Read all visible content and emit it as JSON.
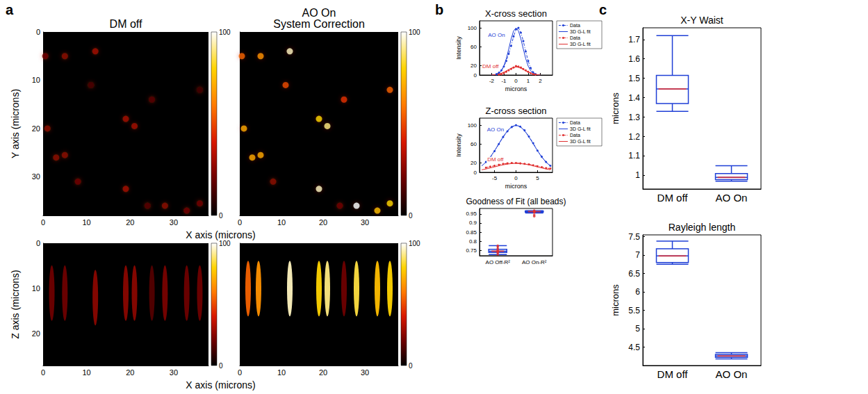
{
  "chart_data": [
    {
      "panel": "a",
      "type": "bead_image",
      "title": "DM off",
      "xlabel": "X axis (microns)",
      "ylabel": "Y axis (microns)",
      "marker": "circle",
      "xlim": [
        0,
        38
      ],
      "ylim": [
        0,
        38
      ],
      "xticks": [
        0,
        10,
        20,
        30
      ],
      "yticks": [
        0,
        10,
        20,
        30
      ],
      "colorbar_range": [
        0,
        100
      ],
      "colorbar_ticks": [
        0,
        100
      ],
      "beads": [
        [
          0.5,
          5,
          20
        ],
        [
          5,
          5,
          25
        ],
        [
          12,
          4,
          30
        ],
        [
          11,
          11,
          12
        ],
        [
          1,
          20,
          25
        ],
        [
          3,
          26,
          25
        ],
        [
          5,
          25.5,
          25
        ],
        [
          8,
          31,
          20
        ],
        [
          19,
          18,
          30
        ],
        [
          21,
          19.5,
          30
        ],
        [
          25,
          14,
          15
        ],
        [
          19,
          32.5,
          30
        ],
        [
          24,
          36,
          15
        ],
        [
          28,
          36,
          25
        ],
        [
          33,
          37,
          20
        ],
        [
          36,
          35.5,
          20
        ],
        [
          36,
          12,
          10
        ]
      ]
    },
    {
      "type": "bead_image",
      "title": "AO On\nSystem Correction",
      "tick_labels": "x",
      "marker": "circle",
      "xlim": [
        0,
        38
      ],
      "ylim": [
        0,
        38
      ],
      "xticks": [
        0,
        10,
        20,
        30
      ],
      "yticks": [
        0,
        10,
        20,
        30
      ],
      "colorbar_range": [
        0,
        100
      ],
      "colorbar_ticks": [
        0,
        100
      ],
      "beads": [
        [
          0.5,
          5,
          55
        ],
        [
          5,
          5,
          65
        ],
        [
          12,
          4,
          95
        ],
        [
          11,
          11,
          50
        ],
        [
          1,
          20,
          70
        ],
        [
          3,
          26,
          70
        ],
        [
          5,
          25.5,
          70
        ],
        [
          8,
          31,
          25
        ],
        [
          19,
          18,
          80
        ],
        [
          21,
          19.5,
          90
        ],
        [
          25,
          14,
          45
        ],
        [
          19,
          32.5,
          95
        ],
        [
          24,
          36,
          20
        ],
        [
          28,
          36,
          100
        ],
        [
          33,
          37,
          75
        ],
        [
          36,
          35.5,
          80
        ],
        [
          36,
          12,
          55
        ]
      ]
    },
    {
      "type": "bead_image",
      "xlabel": "X axis (microns)",
      "ylabel": "Z axis (microns)",
      "marker": "ellipse",
      "xlim": [
        0,
        38
      ],
      "ylim": [
        0,
        27
      ],
      "xticks": [
        0,
        10,
        20,
        30
      ],
      "yticks": [
        0,
        10,
        20
      ],
      "colorbar_range": [
        0,
        100
      ],
      "colorbar_ticks": [
        0,
        100
      ],
      "beads": [
        [
          2,
          11,
          20
        ],
        [
          5,
          11,
          20
        ],
        [
          12,
          12,
          25
        ],
        [
          19,
          11,
          25
        ],
        [
          21,
          11,
          25
        ],
        [
          25,
          11,
          15
        ],
        [
          28,
          11,
          22
        ],
        [
          33,
          11,
          20
        ],
        [
          36,
          11,
          20
        ]
      ]
    },
    {
      "type": "bead_image",
      "tick_labels": "x",
      "marker": "ellipse",
      "xlim": [
        0,
        38
      ],
      "ylim": [
        0,
        27
      ],
      "xticks": [
        0,
        10,
        20,
        30
      ],
      "yticks": [
        0,
        10,
        20
      ],
      "colorbar_range": [
        0,
        100
      ],
      "colorbar_ticks": [
        0,
        100
      ],
      "beads": [
        [
          2,
          10,
          55
        ],
        [
          4.5,
          10,
          65
        ],
        [
          12,
          10,
          95
        ],
        [
          19,
          10,
          80
        ],
        [
          21,
          10,
          90
        ],
        [
          25,
          10,
          20
        ],
        [
          28,
          10,
          85
        ],
        [
          33,
          10,
          75
        ],
        [
          36,
          10,
          80
        ]
      ]
    },
    {
      "panel": "b",
      "type": "line",
      "title": "X-cross section",
      "xlabel": "microns",
      "ylabel": "Intensity",
      "legend": "right",
      "xlim": [
        -3,
        3
      ],
      "xticks": [
        -2,
        -1,
        0,
        1,
        2
      ],
      "ylim": [
        0,
        115
      ],
      "yticks": [
        0,
        20,
        60,
        100
      ],
      "series": [
        {
          "name": "Data",
          "color": "#1f3fd6",
          "marker": "circle",
          "line_style": "dashdot",
          "x": [
            -1.6,
            -1.4,
            -1.2,
            -1.0,
            -0.8,
            -0.6,
            -0.4,
            -0.2,
            0,
            0.2,
            0.4,
            0.6,
            0.8,
            1.0,
            1.2,
            1.4,
            1.6
          ],
          "values": [
            2,
            5,
            10,
            18,
            30,
            45,
            62,
            82,
            97,
            100,
            90,
            72,
            50,
            30,
            15,
            6,
            2
          ]
        },
        {
          "name": "3D G-L fit",
          "color": "#1f3fd6",
          "marker": "none",
          "line_style": "solid",
          "x": [
            -2.0,
            -1.8,
            -1.6,
            -1.4,
            -1.2,
            -1.0,
            -0.8,
            -0.6,
            -0.4,
            -0.2,
            0,
            0.2,
            0.4,
            0.6,
            0.8,
            1.0,
            1.2,
            1.4,
            1.6,
            1.8,
            2.0
          ],
          "values": [
            0.1,
            0.5,
            1.5,
            3.9,
            9.3,
            19.1,
            34.7,
            55.2,
            76.8,
            93.6,
            100,
            93.6,
            76.8,
            55.2,
            34.7,
            19.1,
            9.3,
            3.9,
            1.5,
            0.5,
            0.1
          ]
        },
        {
          "name": "Data",
          "color": "#e03030",
          "marker": "circle",
          "line_style": "dashdot",
          "x": [
            -1.4,
            -1.2,
            -1.0,
            -0.8,
            -0.6,
            -0.4,
            -0.2,
            0,
            0.2,
            0.4,
            0.6,
            0.8,
            1.0,
            1.2,
            1.4,
            1.6
          ],
          "values": [
            1,
            2,
            4,
            7,
            10,
            13,
            16,
            19,
            18,
            16,
            13,
            10,
            7,
            4,
            2,
            1
          ]
        },
        {
          "name": "3D G-L fit",
          "color": "#e03030",
          "marker": "none",
          "line_style": "solid",
          "x": [
            -2.0,
            -1.8,
            -1.6,
            -1.4,
            -1.2,
            -1.0,
            -0.8,
            -0.6,
            -0.4,
            -0.2,
            0,
            0.2,
            0.4,
            0.6,
            0.8,
            1.0,
            1.2,
            1.4,
            1.6,
            1.8,
            2.0
          ],
          "values": [
            0.3,
            0.6,
            1.3,
            2.3,
            3.9,
            6.1,
            8.8,
            11.7,
            14.4,
            16.3,
            17,
            16.3,
            14.4,
            11.7,
            8.8,
            6.1,
            3.9,
            2.3,
            1.3,
            0.6,
            0.3
          ]
        }
      ],
      "annotations": [
        {
          "text": "AO On",
          "x": -1.6,
          "y": 85,
          "color": "#1f3fd6"
        },
        {
          "text": "DM off",
          "x": -2.1,
          "y": 18,
          "color": "#e03030"
        }
      ]
    },
    {
      "type": "line",
      "title": "Z-cross section",
      "xlabel": "microns",
      "ylabel": "Intensity",
      "legend": "right",
      "xlim": [
        -8.5,
        8.5
      ],
      "xticks": [
        -5,
        0,
        5
      ],
      "ylim": [
        0,
        115
      ],
      "yticks": [
        0,
        20,
        60,
        100
      ],
      "series": [
        {
          "name": "Data",
          "color": "#1f3fd6",
          "marker": "circle",
          "line_style": "dashdot",
          "x": [
            -7,
            -6,
            -5,
            -4,
            -3,
            -2,
            -1,
            0,
            1,
            2,
            3,
            4,
            5,
            6,
            7,
            8
          ],
          "values": [
            22,
            31,
            45,
            60,
            75,
            87,
            96,
            100,
            97,
            89,
            76,
            62,
            46,
            33,
            22,
            14
          ]
        },
        {
          "name": "3D G-L fit",
          "color": "#1f3fd6",
          "marker": "none",
          "line_style": "solid",
          "x": [
            -8,
            -7,
            -6,
            -5,
            -4,
            -3,
            -2,
            -1,
            0,
            1,
            2,
            3,
            4,
            5,
            6,
            7,
            8
          ],
          "values": [
            13.5,
            21.6,
            32.5,
            45.8,
            60.7,
            75.5,
            88.2,
            96.9,
            100,
            96.9,
            88.2,
            75.5,
            60.7,
            45.8,
            32.5,
            21.6,
            13.5
          ]
        },
        {
          "name": "Data",
          "color": "#e03030",
          "marker": "circle",
          "line_style": "dashdot",
          "x": [
            -7,
            -6,
            -5,
            -4,
            -3,
            -2,
            -1,
            0,
            1,
            2,
            3,
            4,
            5,
            6,
            7,
            8
          ],
          "values": [
            10,
            12,
            14,
            16,
            18,
            19,
            20,
            20,
            19,
            18,
            17,
            15,
            13,
            11,
            9,
            8
          ]
        },
        {
          "name": "3D G-L fit",
          "color": "#e03030",
          "marker": "none",
          "line_style": "solid",
          "x": [
            -8,
            -7,
            -6,
            -5,
            -4,
            -3,
            -2,
            -1,
            0,
            1,
            2,
            3,
            4,
            5,
            6,
            7,
            8
          ],
          "values": [
            5.3,
            7.1,
            9.3,
            11.5,
            13.8,
            15.9,
            17.5,
            18.6,
            19,
            18.6,
            17.5,
            15.9,
            13.8,
            11.5,
            9.3,
            7.1,
            5.3
          ]
        }
      ],
      "annotations": [
        {
          "text": "AO On",
          "x": -4.8,
          "y": 90,
          "color": "#1f3fd6"
        },
        {
          "text": "DM off",
          "x": -4.8,
          "y": 27,
          "color": "#e03030"
        }
      ]
    },
    {
      "type": "boxplot",
      "title": "Goodness of Fit (all beads)",
      "color": "#1f3fd6",
      "categories": [
        "AO Off-R²",
        "AO On-R²"
      ],
      "ylim": [
        0.72,
        0.98
      ],
      "yticks": [
        0.75,
        0.8,
        0.85,
        0.9,
        0.95
      ],
      "boxes": [
        [
          0.727,
          0.738,
          0.745,
          0.755,
          0.775
        ],
        [
          0.955,
          0.96,
          0.963,
          0.966,
          0.968
        ]
      ],
      "points": [
        [
          0.727,
          0.735,
          0.74,
          0.742,
          0.745,
          0.748,
          0.752,
          0.76,
          0.77,
          0.775
        ],
        [
          0.937,
          0.945,
          0.958,
          0.96,
          0.962,
          0.963,
          0.964,
          0.965,
          0.966,
          0.968
        ]
      ]
    },
    {
      "panel": "c",
      "type": "boxplot",
      "title": "X-Y Waist",
      "ylabel": "microns",
      "color": "#1f3fd6",
      "categories": [
        "DM off",
        "AO On"
      ],
      "ylim": [
        0.93,
        1.76
      ],
      "yticks": [
        1,
        1.1,
        1.2,
        1.3,
        1.4,
        1.5,
        1.6,
        1.7
      ],
      "boxes": [
        [
          1.33,
          1.37,
          1.445,
          1.515,
          1.72
        ],
        [
          0.97,
          0.978,
          0.99,
          1.01,
          1.05
        ]
      ]
    },
    {
      "type": "boxplot",
      "title": "Rayleigh length",
      "ylabel": "microns",
      "color": "#1f3fd6",
      "categories": [
        "DM off",
        "AO On"
      ],
      "ylim": [
        4.0,
        7.55
      ],
      "yticks": [
        4.5,
        5,
        5.5,
        6,
        6.5,
        7,
        7.5
      ],
      "boxes": [
        [
          6.75,
          6.8,
          6.98,
          7.17,
          7.38
        ],
        [
          4.18,
          4.22,
          4.26,
          4.3,
          4.35
        ]
      ]
    }
  ]
}
